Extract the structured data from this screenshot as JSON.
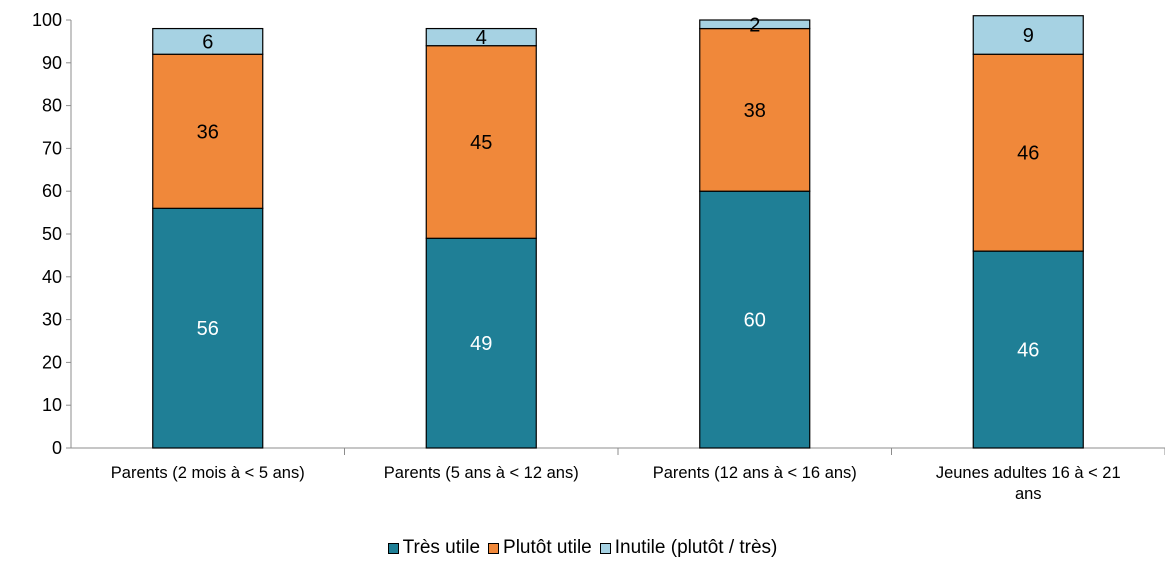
{
  "chart_data": {
    "type": "bar",
    "stacked": true,
    "title": "",
    "xlabel": "",
    "ylabel": "",
    "ylim": [
      0,
      100
    ],
    "yticks": [
      0,
      10,
      20,
      30,
      40,
      50,
      60,
      70,
      80,
      90,
      100
    ],
    "grid": false,
    "legend_position": "bottom",
    "categories": [
      [
        "Parents (2 mois à  < 5 ans)"
      ],
      [
        "Parents (5 ans à < 12 ans)"
      ],
      [
        "Parents (12 ans à < 16 ans)"
      ],
      [
        "Jeunes adultes 16 à < 21",
        "ans"
      ]
    ],
    "series": [
      {
        "name": "Très utile",
        "color": "#1f7f96",
        "label_color": "#ffffff",
        "values": [
          56,
          49,
          60,
          46
        ]
      },
      {
        "name": "Plutôt utile",
        "color": "#f0883a",
        "label_color": "#000000",
        "values": [
          36,
          45,
          38,
          46
        ]
      },
      {
        "name": "Inutile (plutôt / très)",
        "color": "#a6d2e3",
        "label_color": "#000000",
        "values": [
          6,
          4,
          2,
          9
        ]
      }
    ]
  }
}
